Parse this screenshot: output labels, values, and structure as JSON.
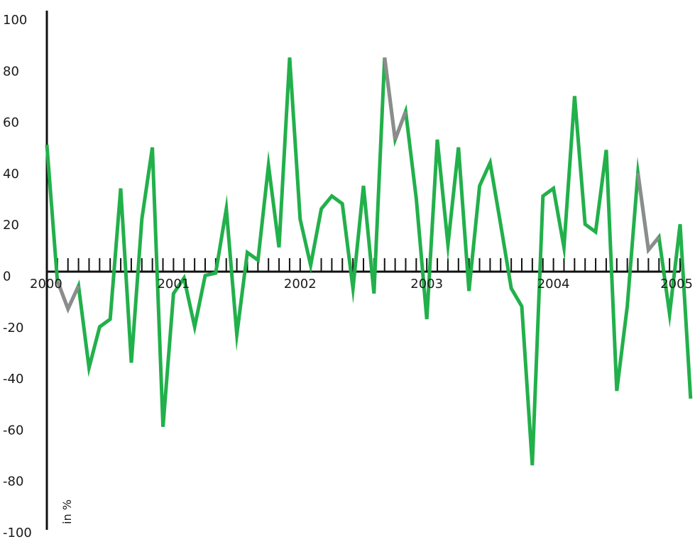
{
  "chart_data": {
    "type": "line",
    "title": "",
    "xlabel": "",
    "ylabel": "in %",
    "ylim": [
      -100,
      100
    ],
    "xlim": [
      2000,
      2005
    ],
    "y_ticks": [
      "100",
      "80",
      "60",
      "40",
      "20",
      "0",
      "-20",
      "-40",
      "-60",
      "-80",
      "-100"
    ],
    "x_tick_labels": [
      {
        "label": "2000",
        "x": 2000
      },
      {
        "label": "2001",
        "x": 2001
      },
      {
        "label": "2002",
        "x": 2002
      },
      {
        "label": "2003",
        "x": 2003
      },
      {
        "label": "2004",
        "x": 2004
      },
      {
        "label": "2005",
        "x": 2005
      }
    ],
    "minor_ticks_per_year": 12,
    "grid": false,
    "colors": {
      "main": "#22b04b",
      "gap": "#8c8c8c",
      "axis": "#111111"
    },
    "x": [
      2000.0,
      2000.083,
      2000.167,
      2000.25,
      2000.333,
      2000.417,
      2000.5,
      2000.583,
      2000.667,
      2000.75,
      2000.833,
      2000.917,
      2001.0,
      2001.083,
      2001.167,
      2001.25,
      2001.333,
      2001.417,
      2001.5,
      2001.583,
      2001.667,
      2001.75,
      2001.833,
      2001.917,
      2002.0,
      2002.083,
      2002.167,
      2002.25,
      2002.333,
      2002.417,
      2002.5,
      2002.583,
      2002.667,
      2002.75,
      2002.833,
      2002.917,
      2003.0,
      2003.083,
      2003.167,
      2003.25,
      2003.333,
      2003.417,
      2003.5,
      2003.583,
      2003.667,
      2003.75,
      2003.833,
      2003.917,
      2004.0,
      2004.083,
      2004.167,
      2004.25,
      2004.333,
      2004.417,
      2004.5,
      2004.583,
      2004.667,
      2004.75,
      2004.833,
      2004.917,
      2005.0,
      2005.083
    ],
    "values": [
      51,
      -2,
      -13,
      -4,
      -36,
      -20,
      -17,
      34,
      -34,
      22,
      50,
      -59,
      -7,
      -1,
      -20,
      0,
      1,
      26,
      -23,
      9,
      6,
      43,
      11,
      85,
      22,
      4,
      26,
      31,
      28,
      -5,
      35,
      -7,
      85,
      53,
      64,
      30,
      -17,
      53,
      12,
      50,
      -6,
      35,
      44,
      20,
      -5,
      -12,
      -74,
      31,
      34,
      11,
      70,
      20,
      17,
      49,
      -45,
      -12,
      40,
      10,
      15,
      -15,
      20,
      -48
    ],
    "gray_segments": [
      [
        1,
        3
      ],
      [
        32,
        34
      ],
      [
        56,
        58
      ]
    ]
  }
}
